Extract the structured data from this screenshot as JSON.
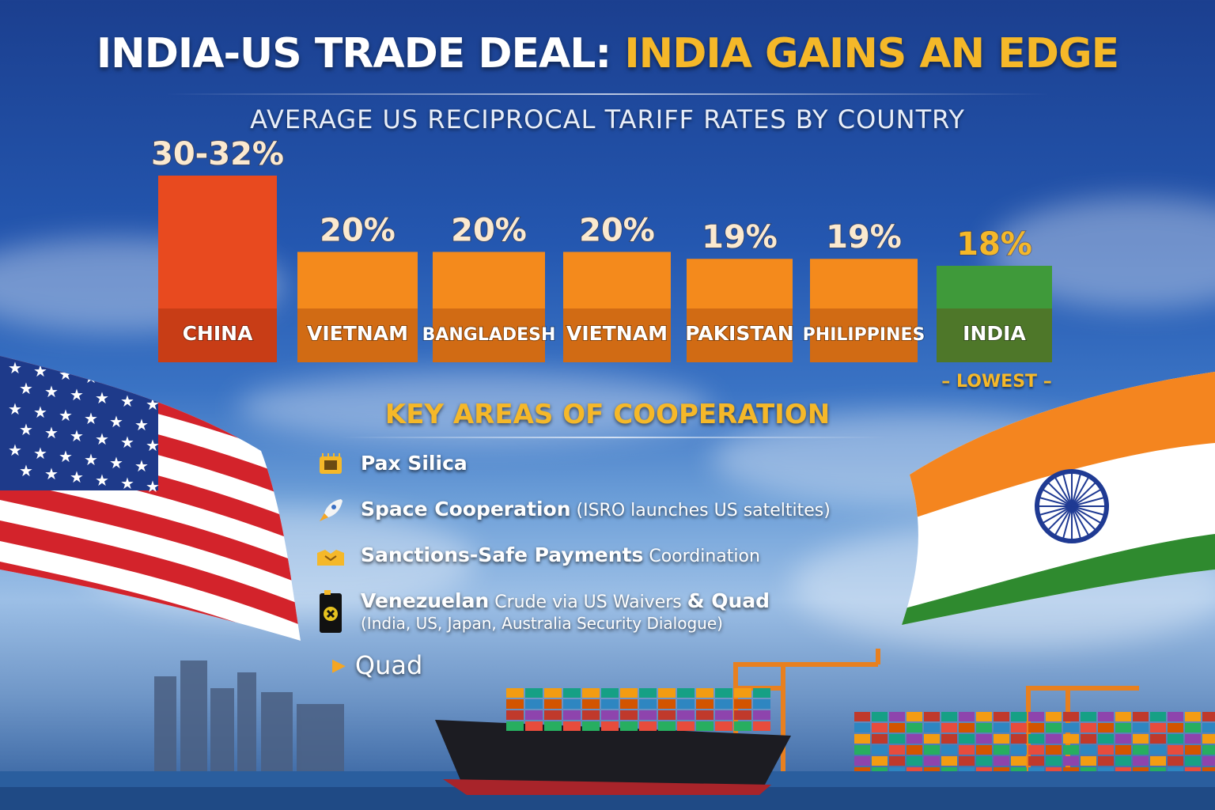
{
  "title": {
    "part1": "INDIA-US TRADE DEAL: ",
    "part2": "INDIA GAINS AN EDGE"
  },
  "subtitle": "AVERAGE US RECIPROCAL TARIFF RATES BY COUNTRY",
  "chart_data": {
    "type": "bar",
    "categories": [
      "CHINA",
      "VIETNAM",
      "BANGLADESH",
      "VIETNAM",
      "PAKISTAN",
      "PHILIPPINES",
      "INDIA"
    ],
    "values": [
      31,
      20,
      20,
      20,
      19,
      19,
      18
    ],
    "value_labels": [
      "30-32%",
      "20%",
      "20%",
      "20%",
      "19%",
      "19%",
      "18%"
    ],
    "colors": [
      "#e84a1f",
      "#f48a1c",
      "#f48a1c",
      "#f48a1c",
      "#f48a1c",
      "#f48a1c",
      "#3f9a3a"
    ],
    "highlight_index": 6,
    "highlight_note": "– LOWEST –",
    "grid": false,
    "legend": "none"
  },
  "cooperation": {
    "title": "KEY AREAS OF COOPERATION",
    "items": [
      {
        "icon": "chip-icon",
        "bold": "Pax Silica",
        "rest": ""
      },
      {
        "icon": "rocket-icon",
        "bold": "Space Cooperation",
        "rest": " (ISRO launches US sateltites)"
      },
      {
        "icon": "handshake-icon",
        "bold": "Sanctions-Safe Payments",
        "rest": " Coordination"
      },
      {
        "icon": "oil-barrel-icon",
        "bold": "Venezuelan",
        "mid": " Crude via US Waivers ",
        "bold2": "& Quad",
        "sub": "(India, US, Japan, Australia Security Dialogue)"
      }
    ],
    "quad_label": "Quad"
  },
  "colors": {
    "accent": "#f5b829",
    "china_bar": "#e84a1f",
    "orange_bar": "#f48a1c",
    "india_bar": "#3f9a3a"
  }
}
